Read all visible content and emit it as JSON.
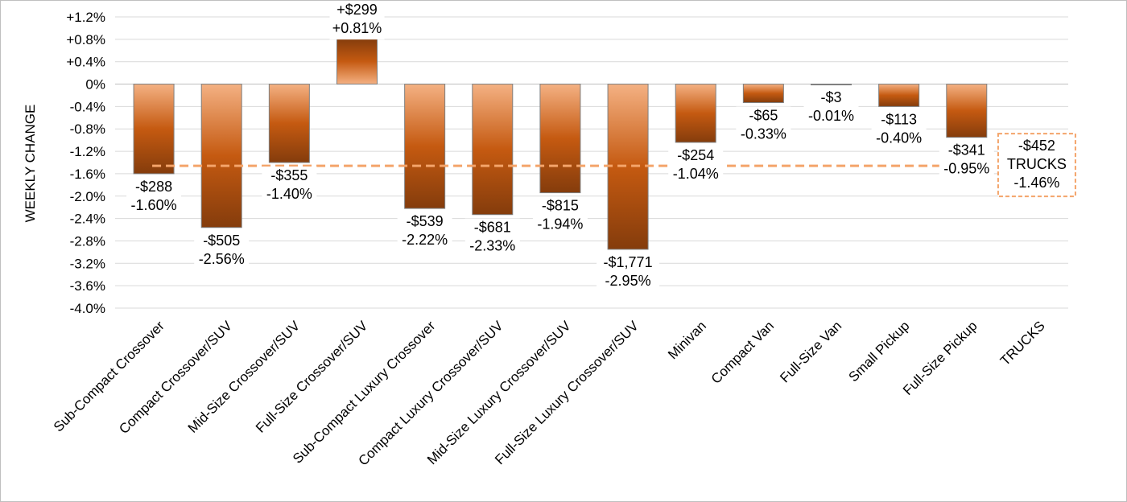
{
  "colors": {
    "bar_light": "#F4B183",
    "bar_mid": "#C55A11",
    "bar_dark": "#843C0C",
    "bar_border": "#7f7f7f",
    "avg_line": "#F4A46A",
    "gridline": "#d9d9d9",
    "axis": "#bfbfbf"
  },
  "chart_data": {
    "type": "bar",
    "ylabel": "WEEKLY CHANGE",
    "ylim": [
      -4.0,
      1.2
    ],
    "y_ticks": [
      1.2,
      0.8,
      0.4,
      0,
      -0.4,
      -0.8,
      -1.2,
      -1.6,
      -2.0,
      -2.4,
      -2.8,
      -3.2,
      -3.6,
      -4.0
    ],
    "y_tick_labels": [
      "+1.2%",
      "+0.8%",
      "+0.4%",
      "0%",
      "-0.4%",
      "-0.8%",
      "-1.2%",
      "-1.6%",
      "-2.0%",
      "-2.4%",
      "-2.8%",
      "-3.2%",
      "-3.6%",
      "-4.0%"
    ],
    "categories": [
      "Sub-Compact Crossover",
      "Compact Crossover/SUV",
      "Mid-Size Crossover/SUV",
      "Full-Size Crossover/SUV",
      "Sub-Compact Luxury Crossover",
      "Compact Luxury Crossover/SUV",
      "Mid-Size Luxury Crossover/SUV",
      "Full-Size Luxury Crossover/SUV",
      "Minivan",
      "Compact Van",
      "Full-Size Van",
      "Small Pickup",
      "Full-Size Pickup",
      "TRUCKS"
    ],
    "values": [
      -1.6,
      -2.56,
      -1.4,
      0.81,
      -2.22,
      -2.33,
      -1.94,
      -2.95,
      -1.04,
      -0.33,
      -0.01,
      -0.4,
      -0.95,
      null
    ],
    "dollar_labels": [
      "-$288",
      "-$505",
      "-$355",
      "+$299",
      "-$539",
      "-$681",
      "-$815",
      "-$1,771",
      "-$254",
      "-$65",
      "-$3",
      "-$113",
      "-$341",
      null
    ],
    "pct_labels": [
      "-1.60%",
      "-2.56%",
      "-1.40%",
      "+0.81%",
      "-2.22%",
      "-2.33%",
      "-1.94%",
      "-2.95%",
      "-1.04%",
      "-0.33%",
      "-0.01%",
      "-0.40%",
      "-0.95%",
      null
    ],
    "average": {
      "value": -1.46,
      "dollar_label": "-$452",
      "name_label": "TRUCKS",
      "pct_label": "-1.46%"
    },
    "grid": true,
    "legend": "none"
  }
}
